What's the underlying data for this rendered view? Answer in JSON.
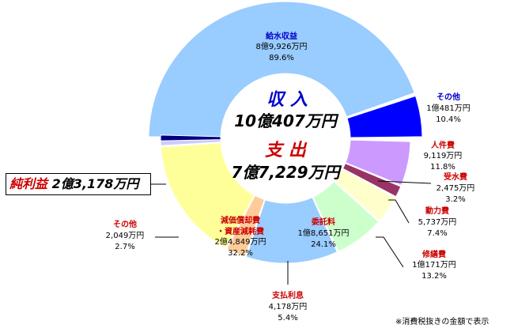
{
  "chart_data": [
    {
      "type": "pie",
      "ring": "outer",
      "center_label": "収 入",
      "center_value": "10億407万円",
      "slices": [
        {
          "name": "給水収益",
          "value_text": "8億9,926万円",
          "percent": 89.6,
          "pct_text": "89.6%",
          "color": "#99ccff"
        },
        {
          "name": "その他",
          "value_text": "1億481万円",
          "percent": 10.4,
          "pct_text": "10.4%",
          "color": "#0000ff"
        }
      ]
    },
    {
      "type": "pie",
      "ring": "inner",
      "center_label": "支 出",
      "center_value": "7億7,229万円",
      "slices": [
        {
          "name": "人件費",
          "value_text": "9,119万円",
          "percent": 11.8,
          "pct_text": "11.8%",
          "color": "#cc99ff"
        },
        {
          "name": "受水費",
          "value_text": "2,475万円",
          "percent": 3.2,
          "pct_text": "3.2%",
          "color": "#993366"
        },
        {
          "name": "動力費",
          "value_text": "5,737万円",
          "percent": 7.4,
          "pct_text": "7.4%",
          "color": "#ffffcc"
        },
        {
          "name": "修繕費",
          "value_text": "1億171万円",
          "percent": 13.2,
          "pct_text": "13.2%",
          "color": "#ccffcc"
        },
        {
          "name": "委託料",
          "value_text": "1億8,651万円",
          "percent": 24.1,
          "pct_text": "24.1%",
          "color": "#99ccff"
        },
        {
          "name": "支払利息",
          "value_text": "4,178万円",
          "percent": 5.4,
          "pct_text": "5.4%",
          "color": "#ffcc99"
        },
        {
          "name": "減価償却費・資産減耗費",
          "value_text": "2億4,849万円",
          "percent": 32.2,
          "pct_text": "32.2%",
          "color": "#ffff99"
        },
        {
          "name": "その他",
          "value_text": "2,049万円",
          "percent": 2.7,
          "pct_text": "2.7%",
          "color": "#ccccff"
        }
      ],
      "remainder": {
        "name": "純利益",
        "value_text": "2億3,178万円",
        "color": "#000080"
      }
    }
  ],
  "profit_box": {
    "label": "純利益",
    "value": "2億3,178万円"
  },
  "labels": {
    "income_center": "収 入",
    "income_total": "10億407万円",
    "expense_center": "支 出",
    "expense_total": "7億7,229万円",
    "deprec_line1": "減価償却費",
    "deprec_line2": "・資産減耗費"
  },
  "footnote": "※消費税抜きの金額で表示",
  "colors": {
    "name_blue": "#0000cc",
    "name_red": "#cc0000",
    "outline": "#ffffff"
  }
}
